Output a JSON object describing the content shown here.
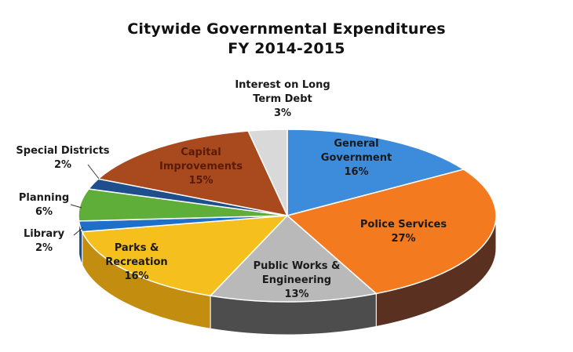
{
  "chart_data": {
    "type": "pie",
    "title": "Citywide Governmental Expenditures",
    "subtitle": "FY 2014-2015",
    "slices": [
      {
        "label_lines": [
          "General",
          "Government"
        ],
        "percent_text": "16%",
        "value": 16,
        "color": "#3d8bdb",
        "side": "#2a63a0"
      },
      {
        "label_lines": [
          "Police Services"
        ],
        "percent_text": "27%",
        "value": 27,
        "color": "#f47a20",
        "side": "#5a3020"
      },
      {
        "label_lines": [
          "Public Works &",
          "Engineering"
        ],
        "percent_text": "13%",
        "value": 13,
        "color": "#b9b9b9",
        "side": "#4d4d4d"
      },
      {
        "label_lines": [
          "Parks &",
          "Recreation"
        ],
        "percent_text": "16%",
        "value": 16,
        "color": "#f5c01e",
        "side": "#c38d10"
      },
      {
        "label_lines": [
          "Library"
        ],
        "percent_text": "2%",
        "value": 2,
        "color": "#1f6fc8",
        "side": "#164f8f"
      },
      {
        "label_lines": [
          "Planning"
        ],
        "percent_text": "6%",
        "value": 6,
        "color": "#5fae3a",
        "side": "#3d7a23"
      },
      {
        "label_lines": [
          "Special Districts"
        ],
        "percent_text": "2%",
        "value": 2,
        "color": "#1f4e8c",
        "side": "#163a66"
      },
      {
        "label_lines": [
          "Capital",
          "Improvements"
        ],
        "percent_text": "15%",
        "value": 15,
        "color": "#a84a1e",
        "side": "#6e2f12"
      },
      {
        "label_lines": [
          "Interest on Long",
          "Term Debt"
        ],
        "percent_text": "3%",
        "value": 3,
        "color": "#d9d9d9",
        "side": "#9a9a9a"
      }
    ]
  }
}
